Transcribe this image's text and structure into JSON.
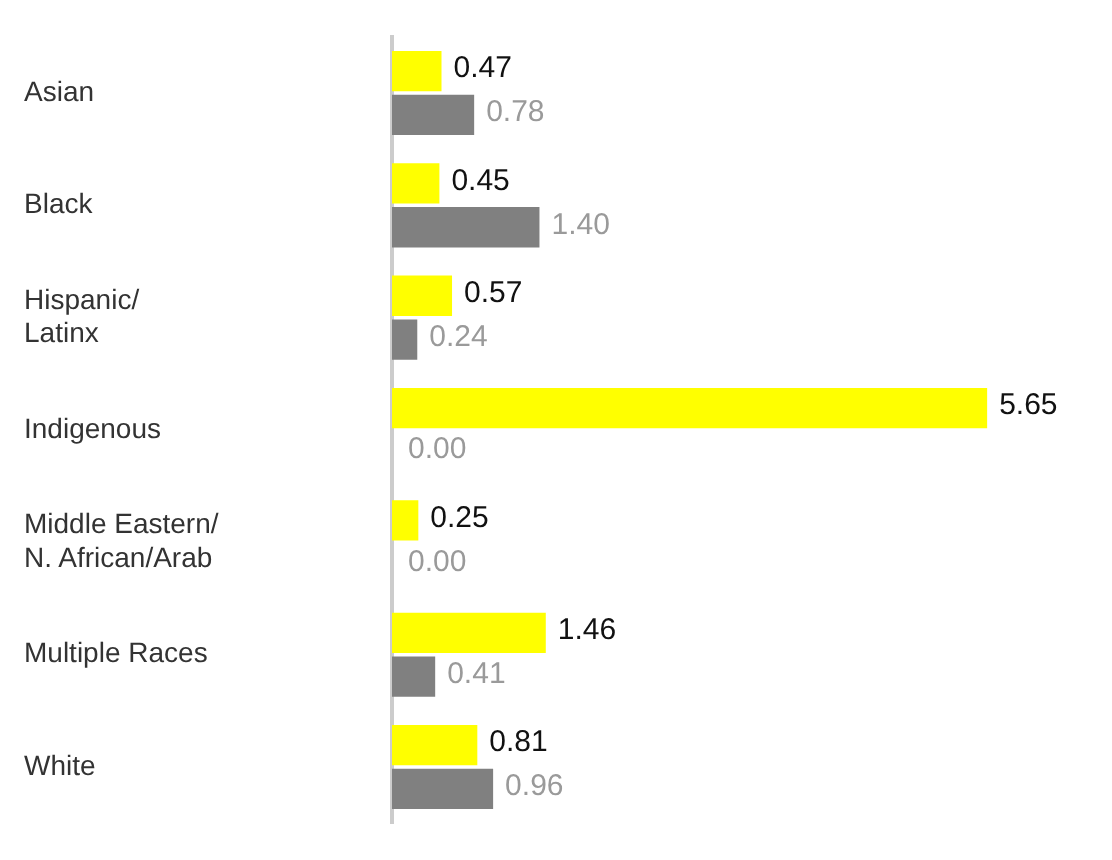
{
  "chart_data": {
    "type": "bar",
    "orientation": "horizontal",
    "categories": [
      "Asian",
      "Black",
      "Hispanic/\nLatinx",
      "Indigenous",
      "Middle Eastern/\nN. African/Arab",
      "Multiple Races",
      "White"
    ],
    "series": [
      {
        "color": "#ffff00",
        "values": [
          0.47,
          0.45,
          0.57,
          5.65,
          0.25,
          1.46,
          0.81
        ],
        "value_labels": [
          "0.47",
          "0.45",
          "0.57",
          "5.65",
          "0.25",
          "1.46",
          "0.81"
        ]
      },
      {
        "color": "#808080",
        "values": [
          0.78,
          1.4,
          0.24,
          0.0,
          0.0,
          0.41,
          0.96
        ],
        "value_labels": [
          "0.78",
          "1.40",
          "0.24",
          "0.00",
          "0.00",
          "0.41",
          "0.96"
        ]
      }
    ],
    "legend": false,
    "tick_labels": "y"
  }
}
